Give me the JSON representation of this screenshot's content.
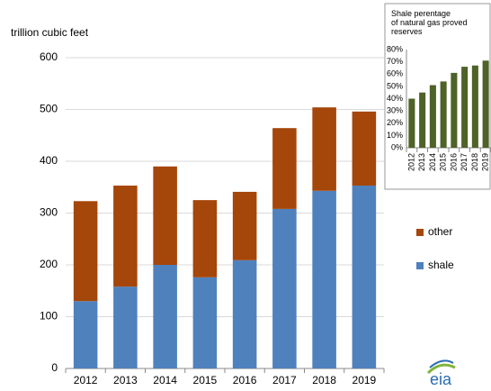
{
  "chart_data": [
    {
      "type": "bar",
      "stacked": true,
      "y_label": "trillion cubic feet",
      "categories": [
        "2012",
        "2013",
        "2014",
        "2015",
        "2016",
        "2017",
        "2018",
        "2019"
      ],
      "series": [
        {
          "name": "shale",
          "color": "#4f81bd",
          "values": [
            130,
            158,
            200,
            176,
            209,
            308,
            343,
            353
          ]
        },
        {
          "name": "other",
          "color": "#a5460a",
          "values": [
            193,
            195,
            190,
            149,
            132,
            156,
            161,
            143
          ]
        }
      ],
      "ylim": [
        0,
        600
      ],
      "yticks": [
        0,
        100,
        200,
        300,
        400,
        500,
        600
      ],
      "grid": true,
      "legend": "right",
      "logo": "eia"
    },
    {
      "type": "bar",
      "title": "Shale perentage of natural gas proved reserves",
      "categories": [
        "2012",
        "2013",
        "2014",
        "2015",
        "2016",
        "2017",
        "2018",
        "2019"
      ],
      "values": [
        40,
        45,
        51,
        54,
        61,
        66,
        67,
        71
      ],
      "color": "#4f6228",
      "ylim": [
        0,
        80
      ],
      "yticks": [
        {
          "value": 0,
          "label": "0%"
        },
        {
          "value": 10,
          "label": "10%"
        },
        {
          "value": 20,
          "label": "20%"
        },
        {
          "value": 30,
          "label": "30%"
        },
        {
          "value": 40,
          "label": "40%"
        },
        {
          "value": 50,
          "label": "50%"
        },
        {
          "value": 60,
          "label": "60%"
        },
        {
          "value": 70,
          "label": "70%"
        },
        {
          "value": 80,
          "label": "80%"
        }
      ]
    }
  ]
}
